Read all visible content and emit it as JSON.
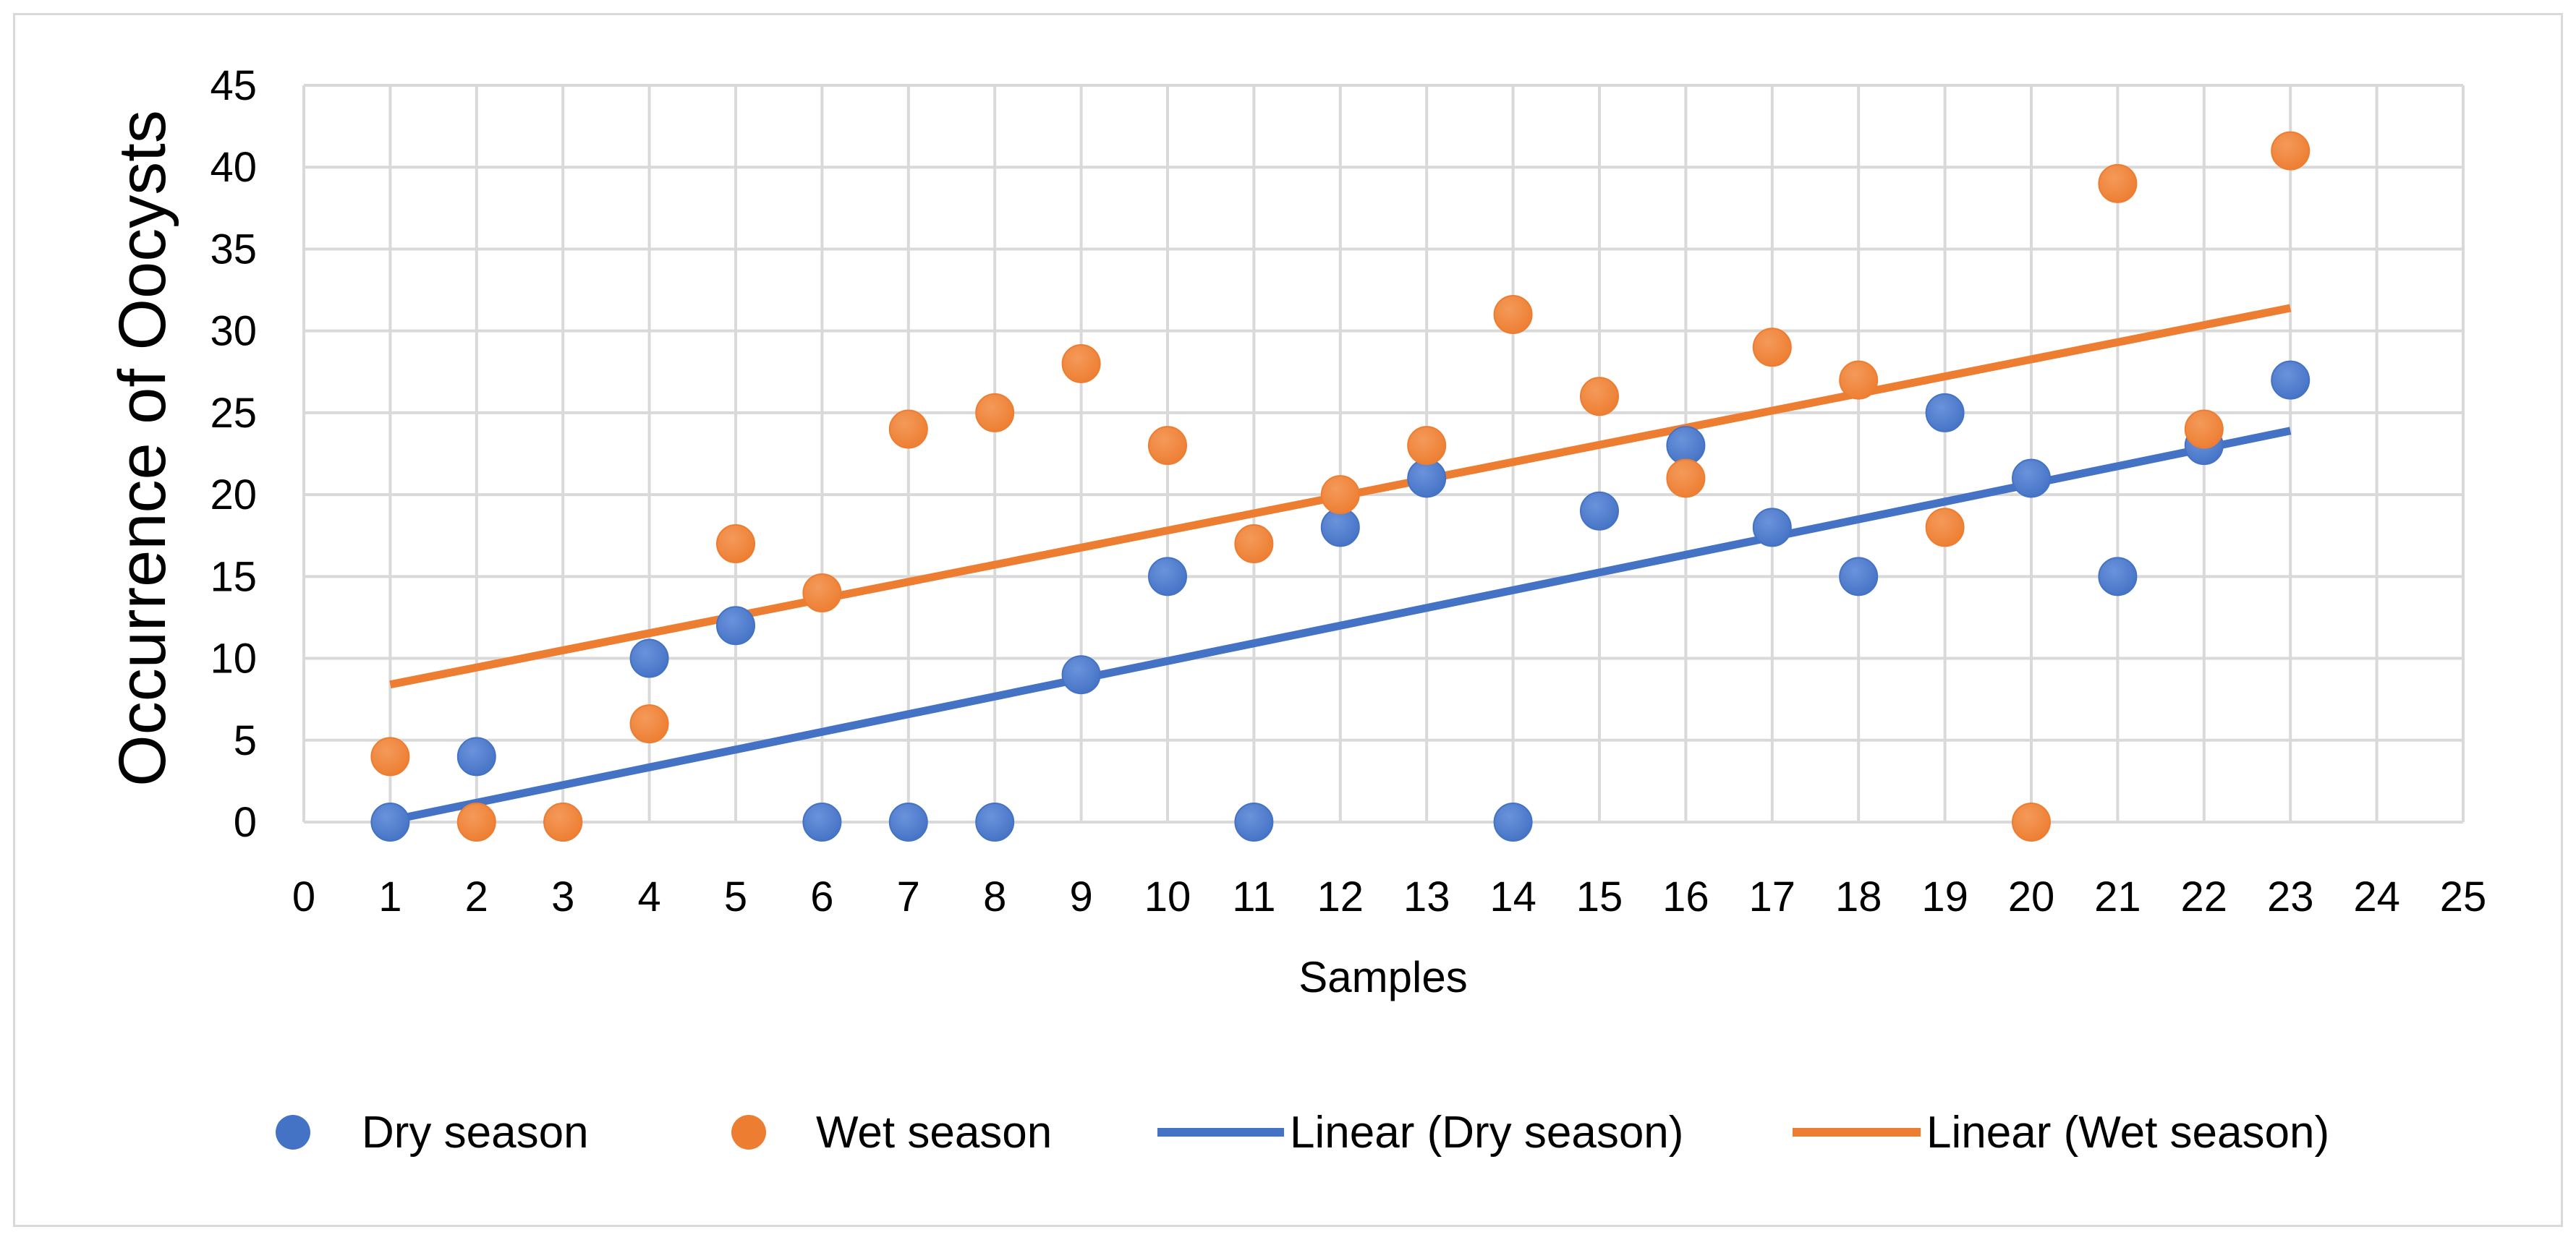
{
  "chart_data": {
    "type": "scatter",
    "title": "",
    "xlabel": "Samples",
    "ylabel": "Occurrence of Oocysts",
    "xlim": [
      0,
      25
    ],
    "ylim": [
      0,
      45
    ],
    "x_ticks": [
      "0",
      "1",
      "2",
      "3",
      "4",
      "5",
      "6",
      "7",
      "8",
      "9",
      "10",
      "11",
      "12",
      "13",
      "14",
      "15",
      "16",
      "17",
      "18",
      "19",
      "20",
      "21",
      "22",
      "23",
      "24",
      "25"
    ],
    "y_ticks": [
      "0",
      "5",
      "10",
      "15",
      "20",
      "25",
      "30",
      "35",
      "40",
      "45"
    ],
    "grid": true,
    "legend_position": "bottom",
    "series": [
      {
        "name": "Dry season",
        "color": "#4472c4",
        "x": [
          1,
          2,
          3,
          4,
          5,
          6,
          7,
          8,
          9,
          10,
          11,
          12,
          13,
          14,
          15,
          16,
          17,
          18,
          19,
          20,
          21,
          22,
          23
        ],
        "values": [
          0,
          4,
          0,
          10,
          12,
          0,
          0,
          0,
          9,
          15,
          0,
          18,
          21,
          0,
          19,
          23,
          18,
          15,
          25,
          21,
          15,
          23,
          27
        ]
      },
      {
        "name": "Wet season",
        "color": "#ed7d31",
        "x": [
          1,
          2,
          3,
          4,
          5,
          6,
          7,
          8,
          9,
          10,
          11,
          12,
          13,
          14,
          15,
          16,
          17,
          18,
          19,
          20,
          21,
          22,
          23
        ],
        "values": [
          4,
          0,
          0,
          6,
          17,
          14,
          24,
          25,
          28,
          23,
          17,
          20,
          23,
          31,
          26,
          21,
          29,
          27,
          18,
          0,
          39,
          24,
          41
        ]
      }
    ],
    "trendlines": [
      {
        "name": "Linear (Dry season)",
        "color": "#4472c4",
        "x": [
          1,
          23
        ],
        "values": [
          0.1,
          23.9
        ]
      },
      {
        "name": "Linear (Wet season)",
        "color": "#ed7d31",
        "x": [
          1,
          23
        ],
        "values": [
          8.4,
          31.4
        ]
      }
    ]
  }
}
